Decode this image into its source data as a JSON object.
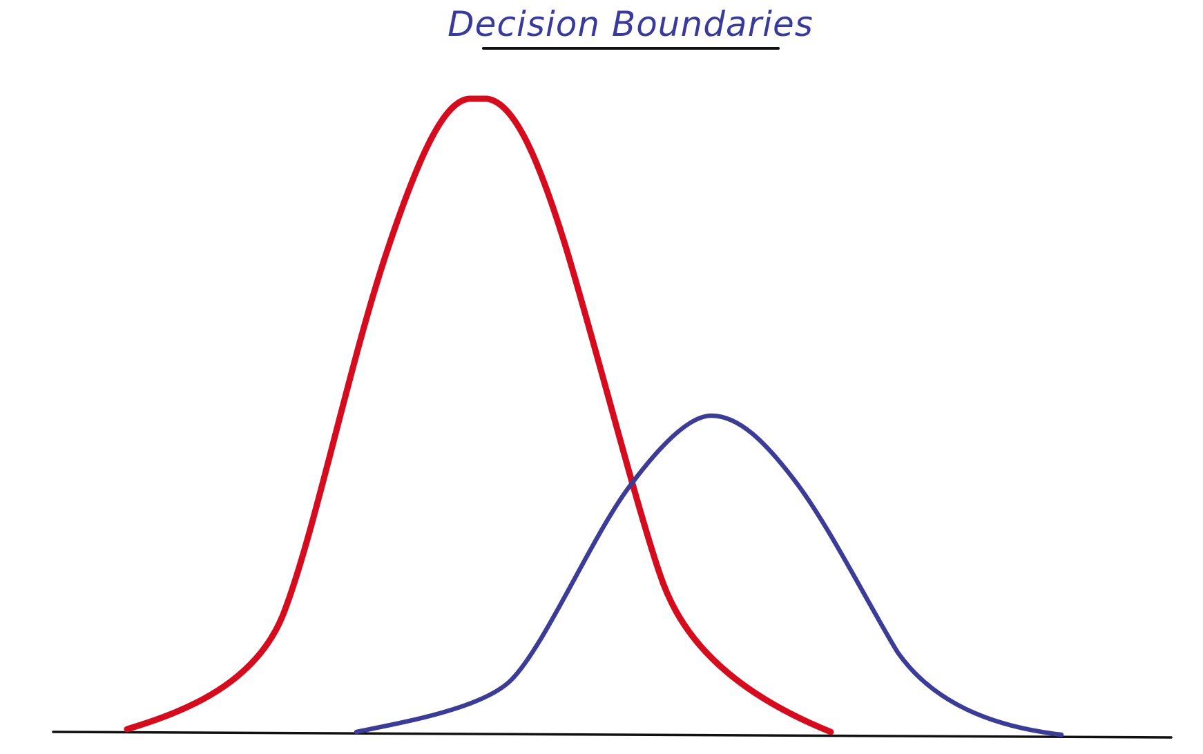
{
  "title": "Decision Boundaries",
  "colors": {
    "title": "#3a3a9a",
    "underline": "#111111",
    "baseline": "#111111",
    "class_a": "#d40c1e",
    "class_b": "#3c3c96"
  }
}
